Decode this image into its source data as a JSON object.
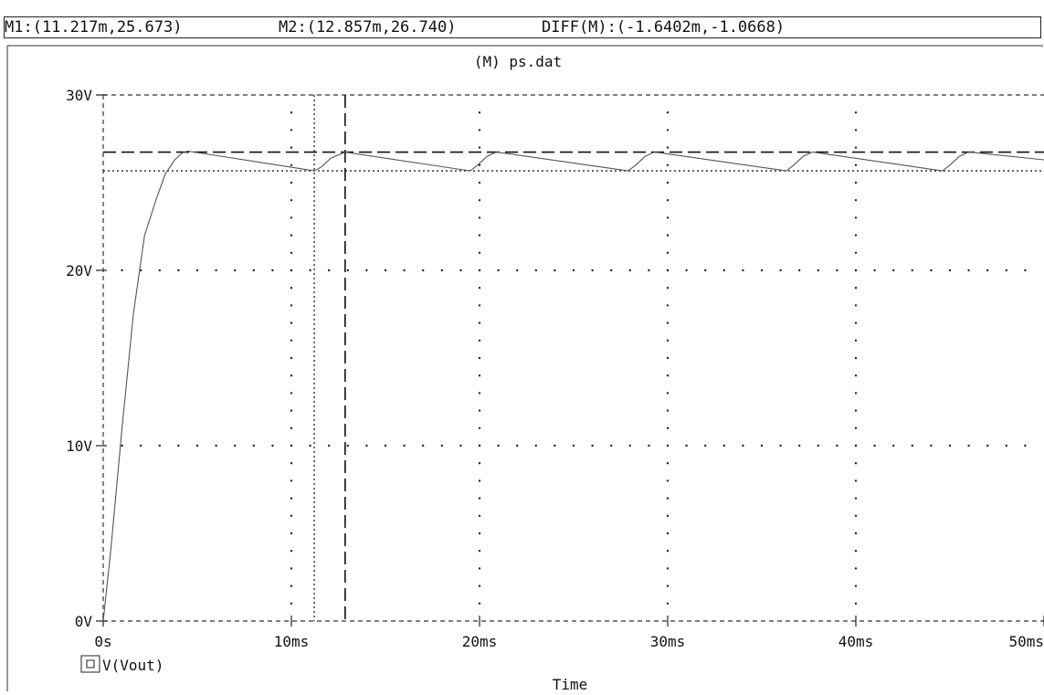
{
  "cursor_bar": {
    "m1": "M1:(11.217m,25.673)",
    "m2": "M2:(12.857m,26.740)",
    "diff": "DIFF(M):(-1.6402m,-1.0668)"
  },
  "chart_data": {
    "type": "line",
    "title": "(M) ps.dat",
    "xlabel": "Time",
    "ylabel": "",
    "x_unit": "ms",
    "y_unit": "V",
    "xlim": [
      0,
      50
    ],
    "ylim": [
      0,
      30
    ],
    "x_ticks": [
      0,
      10,
      20,
      30,
      40,
      50
    ],
    "x_tick_labels": [
      "0s",
      "10ms",
      "20ms",
      "30ms",
      "40ms",
      "50ms"
    ],
    "y_ticks": [
      0,
      10,
      20,
      30
    ],
    "y_tick_labels": [
      "0V",
      "10V",
      "20V",
      "30V"
    ],
    "grid": "dotted",
    "legend": [
      {
        "symbol": "square-icon",
        "label": "V(Vout)"
      }
    ],
    "cursors": [
      {
        "name": "M1",
        "x": 11.217,
        "y": 25.673,
        "style": "dotted"
      },
      {
        "name": "M2",
        "x": 12.857,
        "y": 26.74,
        "style": "dashed"
      }
    ],
    "series": [
      {
        "name": "V(Vout)",
        "x": [
          0,
          0.4,
          1.0,
          1.6,
          2.2,
          2.8,
          3.3,
          3.8,
          4.2,
          4.5,
          11.217,
          11.6,
          12.1,
          12.857,
          19.5,
          19.9,
          20.4,
          20.9,
          27.9,
          28.3,
          28.8,
          29.3,
          36.3,
          36.7,
          37.2,
          37.7,
          44.6,
          45.0,
          45.5,
          46.0,
          50.0
        ],
        "y": [
          0,
          4,
          11,
          17.5,
          22,
          24,
          25.5,
          26.3,
          26.7,
          26.8,
          25.673,
          25.9,
          26.4,
          26.74,
          25.67,
          26.0,
          26.5,
          26.75,
          25.67,
          26.0,
          26.5,
          26.75,
          25.67,
          26.0,
          26.5,
          26.75,
          25.67,
          26.0,
          26.5,
          26.75,
          26.3
        ]
      }
    ]
  }
}
